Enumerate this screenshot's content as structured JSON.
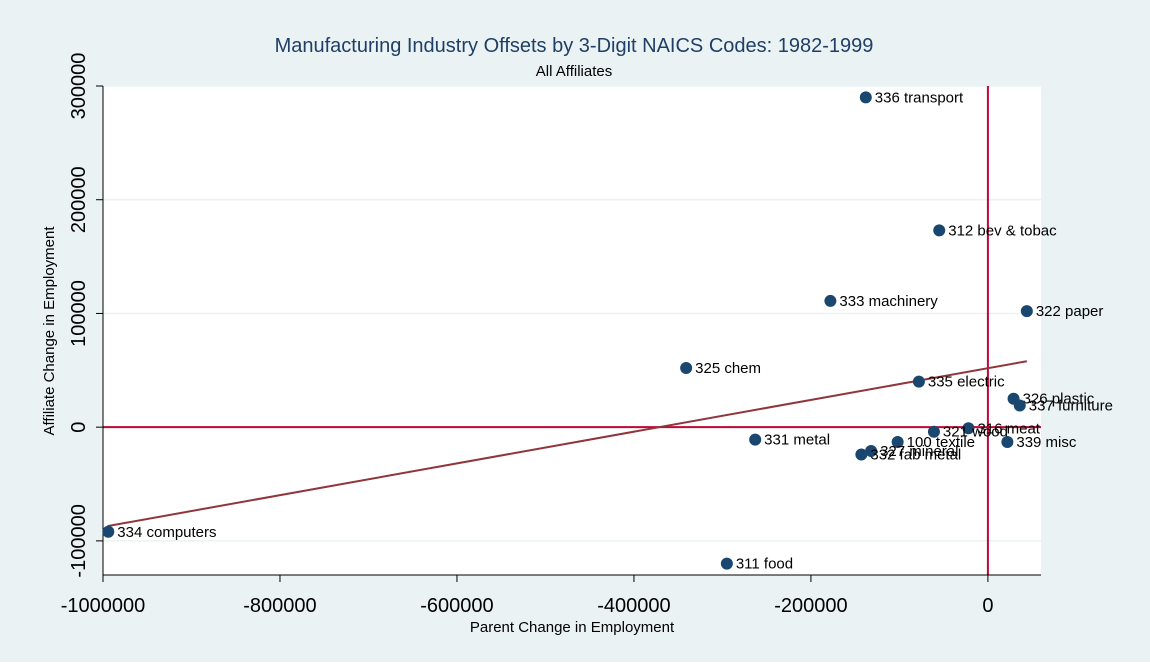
{
  "chart_data": {
    "type": "scatter",
    "title": "Manufacturing Industry Offsets by 3-Digit NAICS Codes: 1982-1999",
    "subtitle": "All Affiliates",
    "xlabel": "Parent Change in Employment",
    "ylabel": "Affiliate Change in Employment",
    "xlim": [
      -1000000,
      60000
    ],
    "ylim": [
      -130000,
      300000
    ],
    "x_ticks": [
      -1000000,
      -800000,
      -600000,
      -400000,
      -200000,
      0
    ],
    "x_tick_labels": [
      "-1000000",
      "-800000",
      "-600000",
      "-400000",
      "-200000",
      "0"
    ],
    "y_ticks": [
      -100000,
      0,
      100000,
      200000,
      300000
    ],
    "y_tick_labels": [
      "-100000",
      "0",
      "100000",
      "200000",
      "300000"
    ],
    "grid": true,
    "legend": "none",
    "colors": {
      "background": "#eaf2f3",
      "plot": "#ffffff",
      "grid": "#eaf2f3",
      "marker": "#1a476f",
      "fit_line": "#90353b",
      "ref_line": "#c10534",
      "title": "#1f3f66"
    },
    "reference_lines": {
      "x": 0,
      "y": 0
    },
    "fit_line": {
      "x": [
        -995000,
        44000
      ],
      "y": [
        -87000,
        58000
      ]
    },
    "points": [
      {
        "x": -138000,
        "y": 290000,
        "label": "336 transport"
      },
      {
        "x": -55000,
        "y": 173000,
        "label": "312 bev & tobac"
      },
      {
        "x": -178000,
        "y": 111000,
        "label": "333 machinery"
      },
      {
        "x": 44000,
        "y": 102000,
        "label": "322 paper"
      },
      {
        "x": -341000,
        "y": 52000,
        "label": "325 chem"
      },
      {
        "x": -78000,
        "y": 40000,
        "label": "335 electric"
      },
      {
        "x": 29000,
        "y": 25000,
        "label": "326 plastic"
      },
      {
        "x": 36000,
        "y": 19000,
        "label": "337 furniture"
      },
      {
        "x": -22000,
        "y": -1000,
        "label": "316 meat"
      },
      {
        "x": -61000,
        "y": -4000,
        "label": "321 wood"
      },
      {
        "x": 22000,
        "y": -13000,
        "label": "339 misc"
      },
      {
        "x": -102000,
        "y": -13000,
        "label": "100 textile"
      },
      {
        "x": -263000,
        "y": -11000,
        "label": "331 metal"
      },
      {
        "x": -132000,
        "y": -21000,
        "label": "327 mineral"
      },
      {
        "x": -143000,
        "y": -24000,
        "label": "332 fab metal"
      },
      {
        "x": -994000,
        "y": -92000,
        "label": "334 computers"
      },
      {
        "x": -295000,
        "y": -120000,
        "label": "311 food"
      }
    ]
  }
}
